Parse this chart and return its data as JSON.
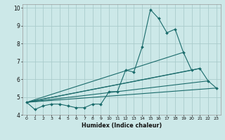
{
  "title": "",
  "xlabel": "Humidex (Indice chaleur)",
  "bg_color": "#cce8e8",
  "grid_color": "#aacccc",
  "line_color": "#1a6b6b",
  "xlim": [
    -0.5,
    23.5
  ],
  "ylim": [
    4,
    10.2
  ],
  "yticks": [
    4,
    5,
    6,
    7,
    8,
    9,
    10
  ],
  "xticks": [
    0,
    1,
    2,
    3,
    4,
    5,
    6,
    7,
    8,
    9,
    10,
    11,
    12,
    13,
    14,
    15,
    16,
    17,
    18,
    19,
    20,
    21,
    22,
    23
  ],
  "series": [
    {
      "x": [
        0,
        1,
        2,
        3,
        4,
        5,
        6,
        7,
        8,
        9,
        10,
        11,
        12,
        13,
        14,
        15,
        16,
        17,
        18,
        19,
        20,
        21,
        22,
        23
      ],
      "y": [
        4.7,
        4.3,
        4.5,
        4.6,
        4.6,
        4.5,
        4.4,
        4.4,
        4.6,
        4.6,
        5.3,
        5.3,
        6.5,
        6.4,
        7.8,
        9.9,
        9.4,
        8.6,
        8.8,
        7.5,
        6.5,
        6.6,
        5.9,
        5.5
      ],
      "has_markers": true
    },
    {
      "x": [
        0,
        23
      ],
      "y": [
        4.7,
        5.5
      ],
      "has_markers": false
    },
    {
      "x": [
        0,
        22
      ],
      "y": [
        4.7,
        5.9
      ],
      "has_markers": false
    },
    {
      "x": [
        0,
        21
      ],
      "y": [
        4.7,
        6.6
      ],
      "has_markers": false
    },
    {
      "x": [
        0,
        20
      ],
      "y": [
        4.7,
        6.5
      ],
      "has_markers": false
    },
    {
      "x": [
        0,
        19
      ],
      "y": [
        4.7,
        7.5
      ],
      "has_markers": false
    }
  ]
}
